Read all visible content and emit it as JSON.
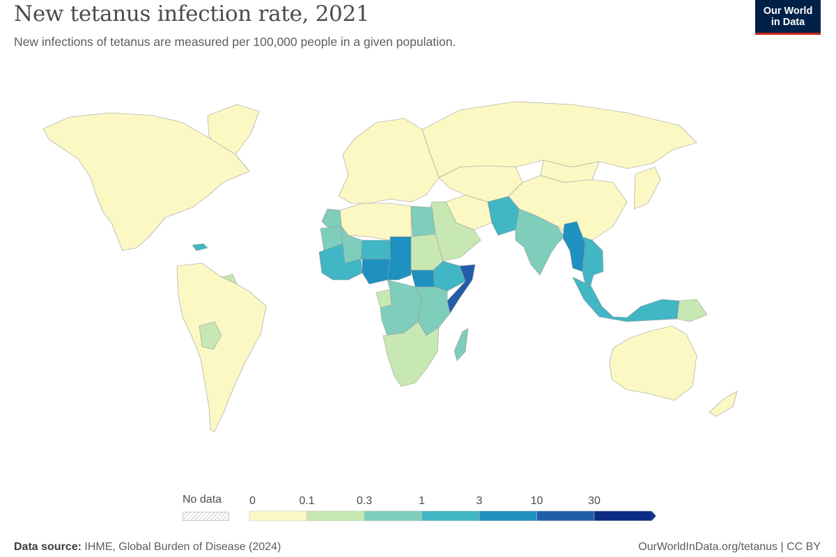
{
  "header": {
    "title": "New tetanus infection rate, 2021",
    "subtitle": "New infections of tetanus are measured per 100,000 people in a given population."
  },
  "logo": {
    "line1": "Our World",
    "line2": "in Data"
  },
  "legend": {
    "no_data_label": "No data",
    "bins": [
      {
        "label": "0",
        "color": "#fbf8c4"
      },
      {
        "label": "0.1",
        "color": "#c7e8b2"
      },
      {
        "label": "0.3",
        "color": "#7fcdbb"
      },
      {
        "label": "1",
        "color": "#41b6c4"
      },
      {
        "label": "3",
        "color": "#1e91c0"
      },
      {
        "label": "10",
        "color": "#225ea8"
      },
      {
        "label": "30",
        "color": "#0c2c84"
      }
    ]
  },
  "footer": {
    "source_label": "Data source:",
    "source_text": "IHME, Global Burden of Disease (2024)",
    "right_text": "OurWorldInData.org/tetanus | CC BY"
  },
  "map_regions": [
    {
      "name": "north-america",
      "bin": 0
    },
    {
      "name": "greenland",
      "bin": 0
    },
    {
      "name": "caribbean-haiti",
      "bin": 3
    },
    {
      "name": "south-america",
      "bin": 0
    },
    {
      "name": "bolivia",
      "bin": 1
    },
    {
      "name": "guyana",
      "bin": 1
    },
    {
      "name": "europe",
      "bin": 0
    },
    {
      "name": "russia",
      "bin": 0
    },
    {
      "name": "central-asia",
      "bin": 0
    },
    {
      "name": "china",
      "bin": 0
    },
    {
      "name": "mongolia",
      "bin": 0
    },
    {
      "name": "japan-korea",
      "bin": 0
    },
    {
      "name": "north-africa",
      "bin": 0
    },
    {
      "name": "mauritania",
      "bin": 2
    },
    {
      "name": "morocco",
      "bin": 2
    },
    {
      "name": "egypt",
      "bin": 2
    },
    {
      "name": "sudan",
      "bin": 1
    },
    {
      "name": "middle-east",
      "bin": 1
    },
    {
      "name": "iran",
      "bin": 0
    },
    {
      "name": "mali",
      "bin": 2
    },
    {
      "name": "niger",
      "bin": 3
    },
    {
      "name": "chad",
      "bin": 4
    },
    {
      "name": "nigeria",
      "bin": 4
    },
    {
      "name": "west-africa-coast",
      "bin": 3
    },
    {
      "name": "south-sudan",
      "bin": 4
    },
    {
      "name": "ethiopia",
      "bin": 3
    },
    {
      "name": "somalia",
      "bin": 5
    },
    {
      "name": "central-africa",
      "bin": 2
    },
    {
      "name": "gabon",
      "bin": 1
    },
    {
      "name": "east-africa",
      "bin": 2
    },
    {
      "name": "southern-africa",
      "bin": 1
    },
    {
      "name": "madagascar",
      "bin": 2
    },
    {
      "name": "pakistan-afghanistan",
      "bin": 3
    },
    {
      "name": "india",
      "bin": 2
    },
    {
      "name": "myanmar",
      "bin": 4
    },
    {
      "name": "southeast-asia",
      "bin": 3
    },
    {
      "name": "indonesia",
      "bin": 3
    },
    {
      "name": "papua-new-guinea",
      "bin": 1
    },
    {
      "name": "australia",
      "bin": 0
    },
    {
      "name": "new-zealand",
      "bin": 0
    }
  ]
}
